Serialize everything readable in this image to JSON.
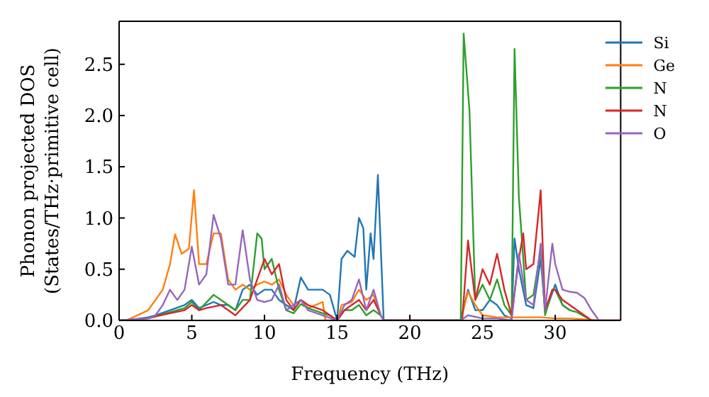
{
  "chart_data": {
    "type": "line",
    "xlabel": "Frequency (THz)",
    "ylabel": "Phonon projected DOS\n(States/THz·primitive cell)",
    "xlim": [
      0,
      34.5
    ],
    "xticks": [
      0,
      5,
      10,
      15,
      20,
      25,
      30
    ],
    "ylim": [
      0,
      2.92
    ],
    "yticks": [
      {
        "value": 0,
        "label": "0.0"
      },
      {
        "value": 0.5,
        "label": "0.5"
      },
      {
        "value": 1,
        "label": "1.0"
      },
      {
        "value": 1.5,
        "label": "1.5"
      },
      {
        "value": 2,
        "label": "2.0"
      },
      {
        "value": 2.5,
        "label": "2.5"
      }
    ],
    "legend": "top right",
    "grid": false,
    "marker": "none",
    "line_style": "solid",
    "series": [
      {
        "name": "Si",
        "color": "#1f77b4",
        "x": [
          0,
          1,
          2,
          2.5,
          3.5,
          4.5,
          5,
          5.5,
          6.5,
          7,
          7.5,
          8,
          8.5,
          9,
          9.5,
          10,
          10.5,
          11,
          11.5,
          12,
          12.5,
          13,
          14,
          14.5,
          15,
          15.3,
          15.7,
          16.2,
          16.5,
          16.8,
          17,
          17.3,
          17.5,
          17.8,
          18.2,
          23.5,
          24,
          24.5,
          25,
          25.5,
          26,
          26.5,
          27,
          27.2,
          27.5,
          28,
          28.5,
          29,
          29.3,
          29.5,
          30,
          30.5,
          31
        ],
        "values": [
          0,
          0.01,
          0.03,
          0.05,
          0.1,
          0.15,
          0.2,
          0.12,
          0.18,
          0.15,
          0.15,
          0.1,
          0.3,
          0.35,
          0.25,
          0.3,
          0.3,
          0.2,
          0.15,
          0.1,
          0.42,
          0.3,
          0.3,
          0.25,
          0,
          0.6,
          0.68,
          0.62,
          1.0,
          0.9,
          0.3,
          0.85,
          0.6,
          1.42,
          0,
          0,
          0.3,
          0.1,
          0.1,
          0.2,
          0.15,
          0.05,
          0.02,
          0.8,
          0.5,
          0.15,
          0.12,
          0.6,
          0.1,
          0.15,
          0.35,
          0.15,
          0.1
        ]
      },
      {
        "name": "Ge",
        "color": "#ff7f0e",
        "x": [
          0,
          0.5,
          2,
          3,
          3.5,
          3.85,
          4.3,
          4.8,
          5.15,
          5.5,
          6,
          6.5,
          7,
          7.5,
          8,
          8.5,
          9,
          9.5,
          10,
          10.5,
          11,
          11.5,
          12,
          12.5,
          13,
          13.5,
          14,
          14.2,
          15,
          15.3,
          16,
          16.5,
          17,
          17.5,
          18,
          18.2,
          23.5,
          24,
          24.5,
          25,
          26,
          27,
          28,
          29,
          30,
          31,
          32,
          33,
          34.5
        ],
        "values": [
          0,
          0,
          0.1,
          0.3,
          0.55,
          0.84,
          0.65,
          0.7,
          1.27,
          0.55,
          0.55,
          0.85,
          0.85,
          0.4,
          0.3,
          0.35,
          0.3,
          0.35,
          0.38,
          0.35,
          0.4,
          0.25,
          0.15,
          0.2,
          0.12,
          0.15,
          0.18,
          0,
          0,
          0.15,
          0.18,
          0.3,
          0.2,
          0.25,
          0.05,
          0,
          0,
          0.28,
          0.15,
          0.05,
          0.03,
          0.03,
          0.03,
          0.03,
          0.02,
          0.02,
          0.01,
          0,
          0
        ]
      },
      {
        "name": "N",
        "color": "#2ca02c",
        "x": [
          2,
          2.5,
          3.5,
          4.5,
          5,
          5.5,
          6.5,
          7,
          7.5,
          8,
          8.5,
          9,
          9.5,
          9.8,
          10,
          10.5,
          11,
          11.5,
          12,
          12.5,
          13,
          14,
          14.5,
          15,
          15.5,
          16,
          16.5,
          17,
          17.5,
          18,
          18.2,
          23.5,
          23.7,
          24.1,
          24.5,
          25,
          25.5,
          26,
          26.5,
          27,
          27.2,
          27.5,
          28,
          28.5,
          29,
          29.3,
          29.8,
          30,
          30.5,
          31,
          31.5,
          32,
          32.5
        ],
        "values": [
          0.02,
          0.04,
          0.08,
          0.12,
          0.18,
          0.1,
          0.25,
          0.2,
          0.15,
          0.1,
          0.2,
          0.2,
          0.85,
          0.8,
          0.5,
          0.6,
          0.3,
          0.1,
          0.07,
          0.16,
          0.12,
          0.07,
          0.05,
          0,
          0.1,
          0.1,
          0.15,
          0.05,
          0.1,
          0.05,
          0,
          0,
          2.8,
          2.05,
          0.2,
          0.35,
          0.2,
          0.4,
          0.15,
          0.05,
          2.65,
          1.2,
          0.2,
          0.25,
          0.7,
          0.05,
          0.3,
          0.3,
          0.15,
          0.1,
          0.08,
          0.04,
          0
        ]
      },
      {
        "name": "N",
        "color": "#d62728",
        "x": [
          0,
          1,
          2,
          2.5,
          3.5,
          4.5,
          5,
          5.5,
          6,
          7,
          7.5,
          8,
          9,
          9.5,
          10,
          10.5,
          11,
          11.5,
          12,
          12.5,
          13,
          14,
          15,
          15.5,
          16,
          16.5,
          17,
          17.5,
          18,
          18.2,
          23.6,
          24,
          24.5,
          25,
          25.5,
          26,
          26.5,
          27,
          27.5,
          27.8,
          28,
          28.5,
          29,
          29.3,
          29.8,
          30,
          30.5,
          31,
          32,
          32.5,
          34.5
        ],
        "values": [
          0,
          0.01,
          0.02,
          0.04,
          0.07,
          0.1,
          0.15,
          0.1,
          0.12,
          0.15,
          0.1,
          0.05,
          0.2,
          0.4,
          0.6,
          0.45,
          0.55,
          0.2,
          0.1,
          0.2,
          0.15,
          0.1,
          0,
          0.1,
          0.15,
          0.2,
          0.1,
          0.2,
          0.05,
          0,
          0,
          0.78,
          0.2,
          0.5,
          0.35,
          0.65,
          0.3,
          0.05,
          0.6,
          0.85,
          0.5,
          0.55,
          1.27,
          0.1,
          0.3,
          0.3,
          0.2,
          0.15,
          0.05,
          0,
          0
        ]
      },
      {
        "name": "O",
        "color": "#9467bd",
        "x": [
          0,
          1,
          2,
          2.5,
          3,
          3.5,
          4,
          4.5,
          5,
          5.5,
          6,
          6.5,
          7,
          7.5,
          8,
          8.5,
          9,
          9.5,
          10,
          10.5,
          11,
          11.5,
          12,
          12.5,
          13,
          14,
          15,
          15.5,
          16,
          16.5,
          17,
          17.5,
          18,
          18.2,
          23.5,
          24,
          25,
          26,
          27,
          27.5,
          28,
          28.5,
          29,
          29.3,
          29.8,
          30,
          30.5,
          31,
          31.5,
          32,
          32.5,
          33,
          34.5
        ],
        "values": [
          0,
          0.01,
          0.02,
          0.05,
          0.15,
          0.3,
          0.2,
          0.3,
          0.72,
          0.35,
          0.45,
          1.03,
          0.8,
          0.35,
          0.35,
          0.88,
          0.4,
          0.2,
          0.18,
          0.2,
          0.35,
          0.1,
          0.15,
          0.2,
          0.1,
          0.05,
          0,
          0.15,
          0.2,
          0.4,
          0.1,
          0.3,
          0.05,
          0,
          0,
          0.05,
          0.02,
          0.02,
          0,
          0.65,
          0.2,
          0.15,
          0.75,
          0.1,
          0.75,
          0.55,
          0.3,
          0.28,
          0.27,
          0.22,
          0.1,
          0,
          0
        ]
      }
    ]
  }
}
